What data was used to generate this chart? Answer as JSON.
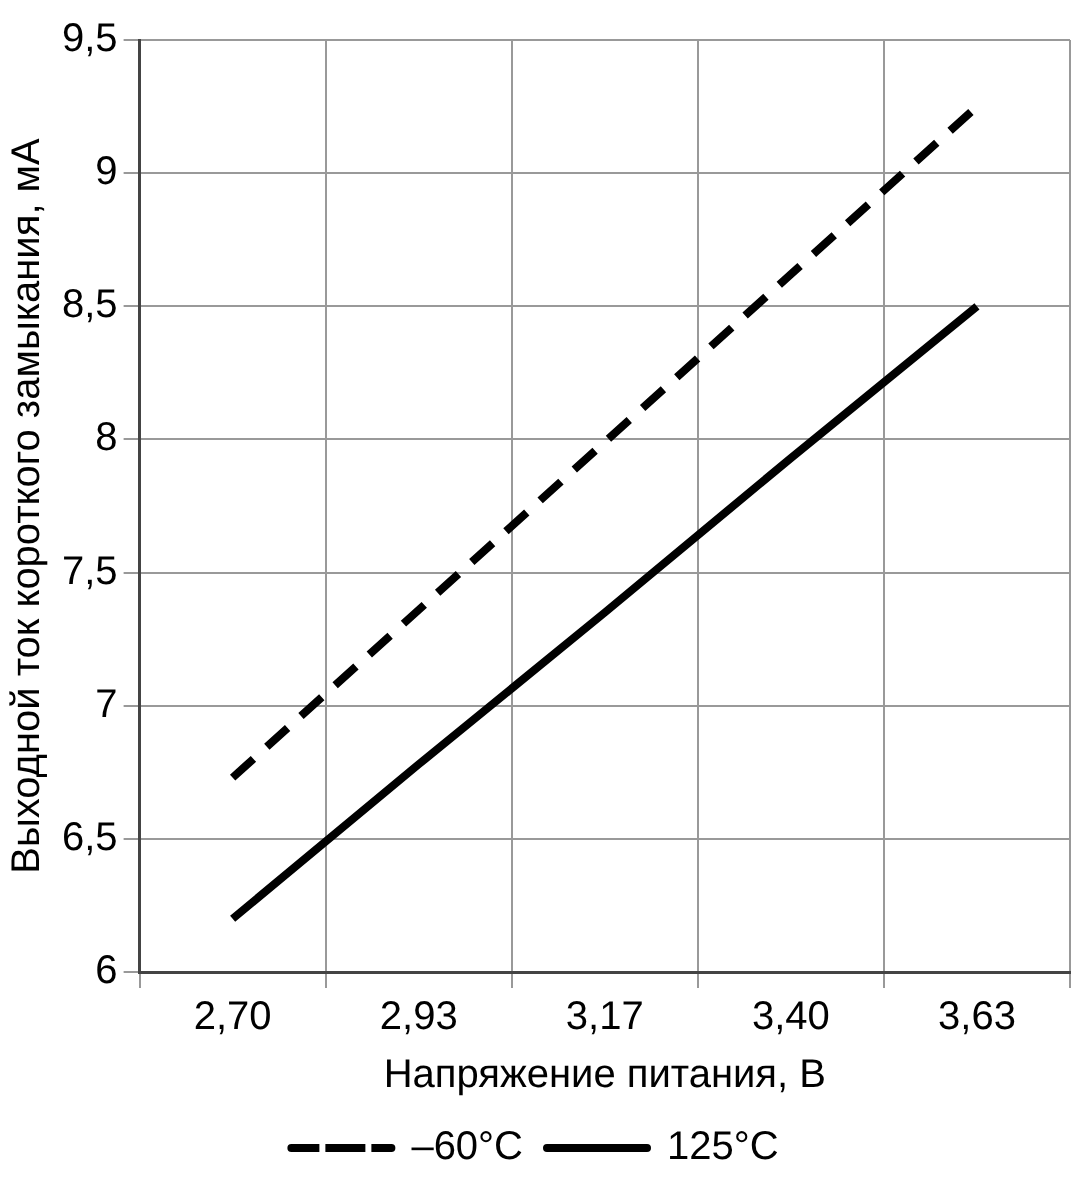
{
  "chart_data": {
    "type": "line",
    "xlabel": "Напряжение питания, В",
    "ylabel": "Выходной ток короткого замыкания, мА",
    "categories": [
      "2,70",
      "2,93",
      "3,17",
      "3,40",
      "3,63"
    ],
    "series": [
      {
        "name": "–60°C",
        "color": "#000000",
        "line_style": "dashed",
        "values": [
          6.73,
          7.36,
          7.99,
          8.62,
          9.25
        ]
      },
      {
        "name": "125°C",
        "color": "#000000",
        "line_style": "solid",
        "values": [
          6.2,
          6.78,
          7.35,
          7.93,
          8.5
        ]
      }
    ],
    "ylim": [
      6,
      9.5
    ],
    "yticks": [
      6,
      {
        "value": 6.5,
        "label": "6,5"
      },
      7,
      {
        "value": 7.5,
        "label": "7,5"
      },
      8,
      {
        "value": 8.5,
        "label": "8,5"
      },
      9,
      {
        "value": 9.5,
        "label": "9,5"
      }
    ],
    "grid": true,
    "legend": "bottom",
    "marker": "none"
  }
}
